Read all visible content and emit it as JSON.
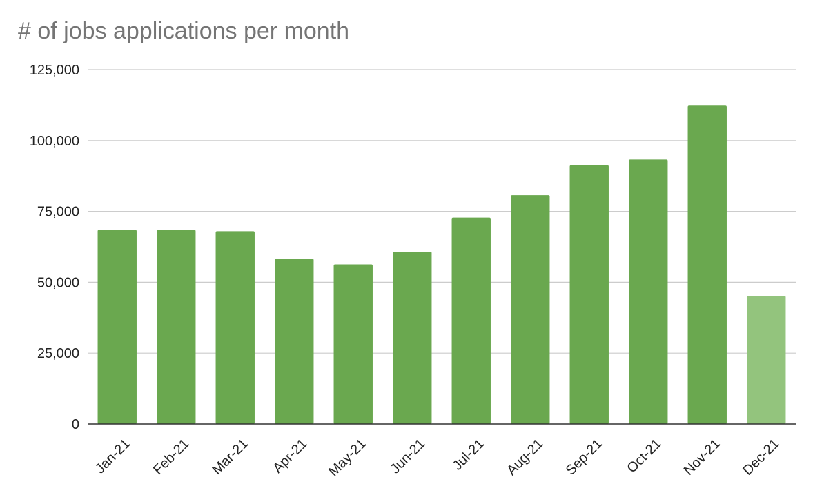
{
  "chart_data": {
    "type": "bar",
    "title": "# of jobs applications per month",
    "xlabel": "",
    "ylabel": "",
    "ylim": [
      0,
      125000
    ],
    "yticks": [
      0,
      25000,
      50000,
      75000,
      100000,
      125000
    ],
    "ytick_labels": [
      "0",
      "25,000",
      "50,000",
      "75,000",
      "100,000",
      "125,000"
    ],
    "grid": true,
    "legend": "none",
    "categories": [
      "Jan-21",
      "Feb-21",
      "Mar-21",
      "Apr-21",
      "May-21",
      "Jun-21",
      "Jul-21",
      "Aug-21",
      "Sep-21",
      "Oct-21",
      "Nov-21",
      "Dec-21"
    ],
    "values": [
      68500,
      68500,
      68000,
      58300,
      56300,
      60800,
      72800,
      80700,
      91300,
      93300,
      112300,
      45200
    ],
    "bar_colors": [
      "#6aa84f",
      "#6aa84f",
      "#6aa84f",
      "#6aa84f",
      "#6aa84f",
      "#6aa84f",
      "#6aa84f",
      "#6aa84f",
      "#6aa84f",
      "#6aa84f",
      "#6aa84f",
      "#93c47d"
    ]
  }
}
